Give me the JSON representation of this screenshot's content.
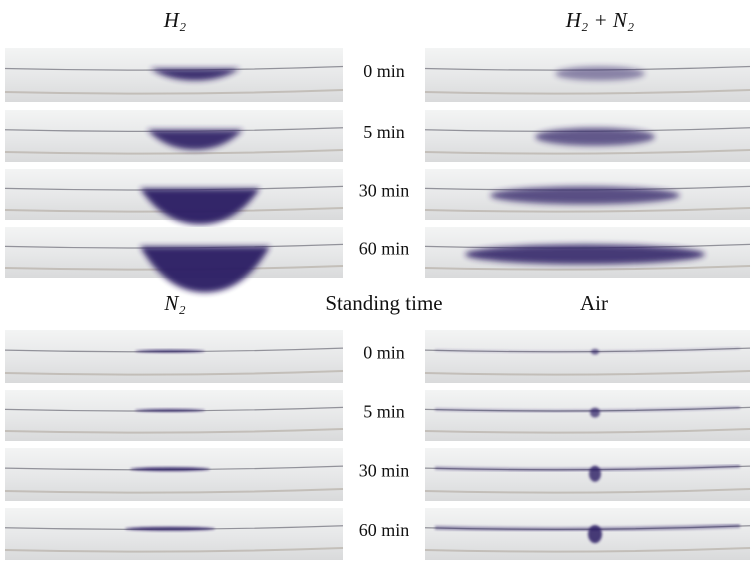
{
  "panels": [
    {
      "title": "H₂"
    },
    {
      "title": "H₂ + N₂"
    },
    {
      "title": "N₂"
    },
    {
      "title": "Air"
    }
  ],
  "groups": [
    {
      "times": [
        "0 min",
        "5 min",
        "30 min",
        "60 min"
      ]
    },
    {
      "times": [
        "0 min",
        "5 min",
        "30 min",
        "60 min"
      ]
    }
  ],
  "center_label": "Standing time"
}
